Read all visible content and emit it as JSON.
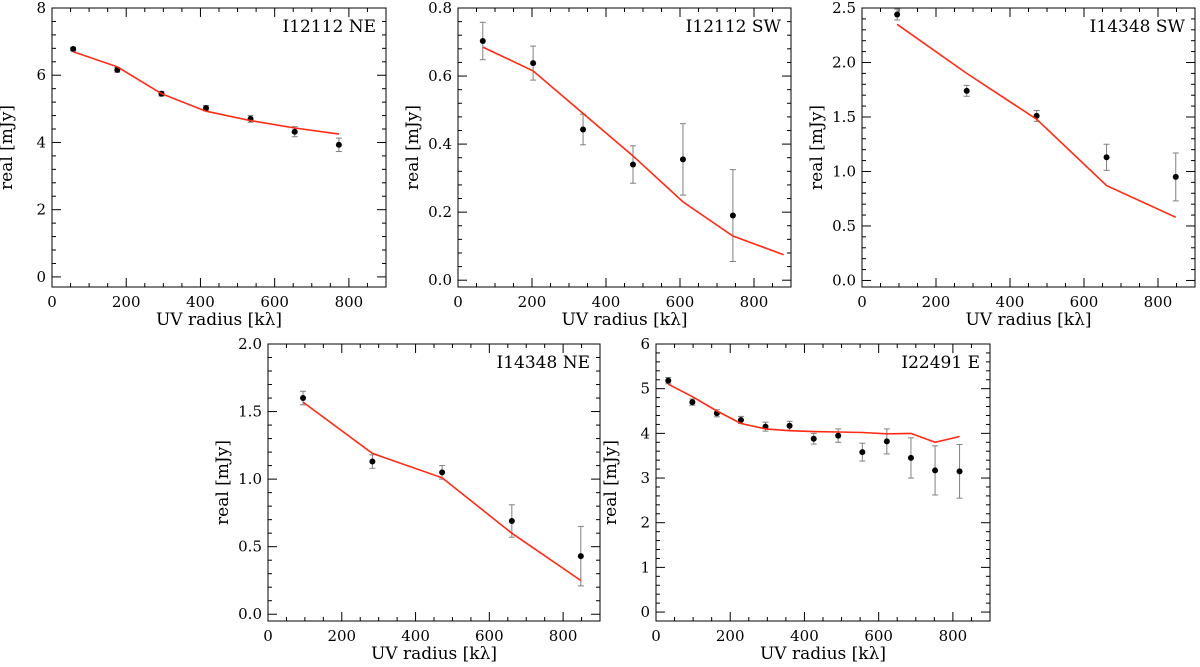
{
  "figure": {
    "colors": {
      "model": "#ff2a14",
      "points": "#000000",
      "errorbars": "#808080",
      "axes": "#000000"
    }
  },
  "chart_data": [
    {
      "type": "scatter",
      "title": "I12112 NE",
      "xlabel": "UV radius [kλ]",
      "ylabel": "real [mJy]",
      "xlim": [
        0,
        900
      ],
      "ylim": [
        -0.3,
        8
      ],
      "xticks": [
        0,
        200,
        400,
        600,
        800
      ],
      "yticks": [
        0,
        2,
        4,
        6,
        8
      ],
      "xtick_labels": [
        "0",
        "200",
        "400",
        "600",
        "800"
      ],
      "ytick_labels": [
        "0",
        "2",
        "4",
        "6",
        "8"
      ],
      "grid": false,
      "series": [
        {
          "kind": "points",
          "x": [
            57,
            176,
            295,
            415,
            535,
            654,
            773
          ],
          "y": [
            6.78,
            6.16,
            5.45,
            5.02,
            4.7,
            4.32,
            3.93
          ],
          "err": [
            0.05,
            0.07,
            0.07,
            0.08,
            0.1,
            0.15,
            0.2
          ]
        },
        {
          "kind": "model",
          "x": [
            57,
            176,
            295,
            415,
            535,
            654,
            773
          ],
          "y": [
            6.7,
            6.25,
            5.45,
            4.93,
            4.65,
            4.43,
            4.25
          ]
        }
      ]
    },
    {
      "type": "scatter",
      "title": "I12112 SW",
      "xlabel": "UV radius [kλ]",
      "ylabel": "real [mJy]",
      "xlim": [
        0,
        900
      ],
      "ylim": [
        -0.02,
        0.8
      ],
      "xticks": [
        0,
        200,
        400,
        600,
        800
      ],
      "yticks": [
        0,
        0.2,
        0.4,
        0.6,
        0.8
      ],
      "xtick_labels": [
        "0",
        "200",
        "400",
        "600",
        "800"
      ],
      "ytick_labels": [
        "0.0",
        "0.2",
        "0.4",
        "0.6",
        "0.8"
      ],
      "grid": false,
      "series": [
        {
          "kind": "points",
          "x": [
            67,
            203,
            338,
            473,
            608,
            743
          ],
          "y": [
            0.703,
            0.638,
            0.443,
            0.34,
            0.355,
            0.19
          ],
          "err": [
            0.055,
            0.05,
            0.045,
            0.055,
            0.105,
            0.135
          ]
        },
        {
          "kind": "model",
          "x": [
            67,
            203,
            338,
            473,
            608,
            743,
            880
          ],
          "y": [
            0.685,
            0.615,
            0.49,
            0.365,
            0.23,
            0.13,
            0.075
          ]
        }
      ]
    },
    {
      "type": "scatter",
      "title": "I14348 SW",
      "xlabel": "UV radius [kλ]",
      "ylabel": "real [mJy]",
      "xlim": [
        0,
        900
      ],
      "ylim": [
        -0.06,
        2.5
      ],
      "xticks": [
        0,
        200,
        400,
        600,
        800
      ],
      "yticks": [
        0,
        0.5,
        1,
        1.5,
        2,
        2.5
      ],
      "xtick_labels": [
        "0",
        "200",
        "400",
        "600",
        "800"
      ],
      "ytick_labels": [
        "0.0",
        "0.5",
        "1.0",
        "1.5",
        "2.0",
        "2.5"
      ],
      "grid": false,
      "series": [
        {
          "kind": "points",
          "x": [
            95,
            283,
            472,
            661,
            848
          ],
          "y": [
            2.44,
            1.74,
            1.51,
            1.13,
            0.95
          ],
          "err": [
            0.05,
            0.05,
            0.05,
            0.12,
            0.22
          ]
        },
        {
          "kind": "model",
          "x": [
            95,
            283,
            472,
            661,
            848
          ],
          "y": [
            2.35,
            1.9,
            1.48,
            0.87,
            0.58
          ]
        }
      ]
    },
    {
      "type": "scatter",
      "title": "I14348 NE",
      "xlabel": "UV radius [kλ]",
      "ylabel": "real [mJy]",
      "xlim": [
        0,
        900
      ],
      "ylim": [
        -0.05,
        2.0
      ],
      "xticks": [
        0,
        200,
        400,
        600,
        800
      ],
      "yticks": [
        0,
        0.5,
        1,
        1.5,
        2
      ],
      "xtick_labels": [
        "0",
        "200",
        "400",
        "600",
        "800"
      ],
      "ytick_labels": [
        "0.0",
        "0.5",
        "1.0",
        "1.5",
        "2.0"
      ],
      "grid": false,
      "series": [
        {
          "kind": "points",
          "x": [
            95,
            283,
            472,
            661,
            848
          ],
          "y": [
            1.6,
            1.13,
            1.05,
            0.69,
            0.43
          ],
          "err": [
            0.05,
            0.05,
            0.05,
            0.12,
            0.22
          ]
        },
        {
          "kind": "model",
          "x": [
            95,
            283,
            472,
            661,
            848
          ],
          "y": [
            1.57,
            1.19,
            1.01,
            0.6,
            0.25
          ]
        }
      ]
    },
    {
      "type": "scatter",
      "title": "I22491 E",
      "xlabel": "UV radius [kλ]",
      "ylabel": "real [mJy]",
      "xlim": [
        0,
        900
      ],
      "ylim": [
        -0.2,
        6
      ],
      "xticks": [
        0,
        200,
        400,
        600,
        800
      ],
      "yticks": [
        0,
        1,
        2,
        3,
        4,
        5,
        6
      ],
      "xtick_labels": [
        "0",
        "200",
        "400",
        "600",
        "800"
      ],
      "ytick_labels": [
        "0",
        "1",
        "2",
        "3",
        "4",
        "5",
        "6"
      ],
      "grid": false,
      "series": [
        {
          "kind": "points",
          "x": [
            33,
            98,
            164,
            229,
            295,
            360,
            425,
            491,
            556,
            622,
            687,
            752,
            818
          ],
          "y": [
            5.18,
            4.7,
            4.45,
            4.3,
            4.15,
            4.17,
            3.88,
            3.95,
            3.58,
            3.82,
            3.45,
            3.17,
            3.15
          ],
          "err": [
            0.07,
            0.07,
            0.08,
            0.08,
            0.1,
            0.1,
            0.12,
            0.15,
            0.2,
            0.28,
            0.45,
            0.55,
            0.6
          ]
        },
        {
          "kind": "model",
          "x": [
            33,
            98,
            164,
            229,
            295,
            360,
            425,
            491,
            556,
            622,
            687,
            752,
            818
          ],
          "y": [
            5.1,
            4.82,
            4.5,
            4.22,
            4.1,
            4.06,
            4.04,
            4.03,
            4.02,
            3.99,
            4.0,
            3.8,
            3.93
          ]
        }
      ]
    }
  ]
}
